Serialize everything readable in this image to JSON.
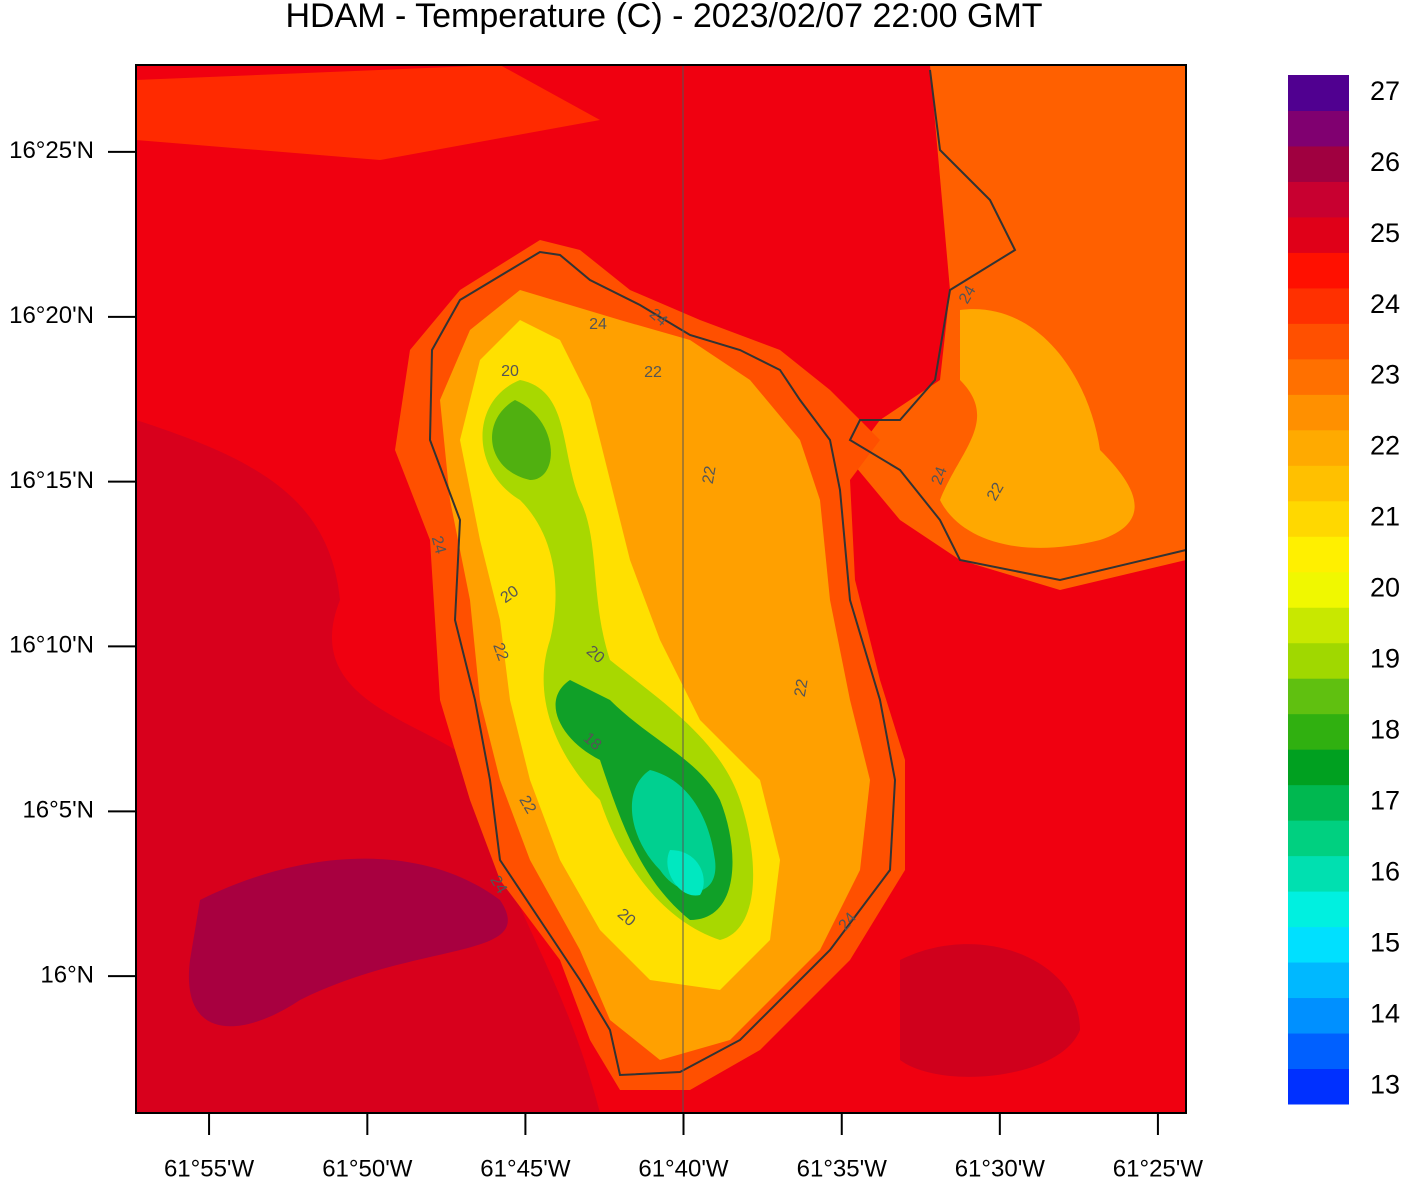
{
  "title": "HDAM - Temperature (C)  -  2023/02/07  22:00 GMT",
  "map": {
    "xlim": [
      -61.9552,
      -61.4019
    ],
    "ylim": [
      15.9308,
      16.4606
    ],
    "xticks": [
      {
        "value": -61.9167,
        "label": "61°55'W"
      },
      {
        "value": -61.8333,
        "label": "61°50'W"
      },
      {
        "value": -61.75,
        "label": "61°45'W"
      },
      {
        "value": -61.6667,
        "label": "61°40'W"
      },
      {
        "value": -61.5833,
        "label": "61°35'W"
      },
      {
        "value": -61.5,
        "label": "61°30'W"
      },
      {
        "value": -61.4167,
        "label": "61°25'W"
      }
    ],
    "yticks": [
      {
        "value": 16.4167,
        "label": "16°25'N"
      },
      {
        "value": 16.3333,
        "label": "16°20'N"
      },
      {
        "value": 16.25,
        "label": "16°15'N"
      },
      {
        "value": 16.1667,
        "label": "16°10'N"
      },
      {
        "value": 16.0833,
        "label": "16°5'N"
      },
      {
        "value": 16,
        "label": "16°N"
      }
    ],
    "contour_labels": [
      24,
      20,
      22,
      22,
      24,
      20,
      22,
      20,
      18,
      22,
      22,
      24,
      20,
      24,
      24,
      22,
      24,
      24
    ]
  },
  "colorbar": {
    "lim": [
      12.75,
      27.25
    ],
    "ticks": [
      13,
      14,
      15,
      16,
      17,
      18,
      19,
      20,
      21,
      22,
      23,
      24,
      25,
      26,
      27
    ],
    "colors": [
      "#0030ff",
      "#0060ff",
      "#0090ff",
      "#00b8ff",
      "#00e0ff",
      "#00f0e0",
      "#00e0b0",
      "#00d080",
      "#00b850",
      "#00a020",
      "#30b010",
      "#60c010",
      "#a0d800",
      "#c8e800",
      "#f0f800",
      "#fff000",
      "#ffd800",
      "#ffc000",
      "#ffaa00",
      "#ff9000",
      "#ff7000",
      "#ff5000",
      "#ff3000",
      "#ff1000",
      "#e00018",
      "#c80030",
      "#a00040",
      "#800070",
      "#500090"
    ]
  }
}
